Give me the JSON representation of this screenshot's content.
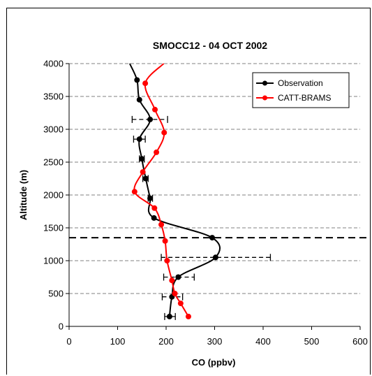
{
  "chart_data": {
    "type": "line",
    "title": "SMOCC12 - 04 OCT 2002",
    "xlabel": "CO (ppbv)",
    "ylabel": "Altitude (m)",
    "xlim": [
      0,
      600
    ],
    "ylim": [
      0,
      4000
    ],
    "xticks": [
      0,
      100,
      200,
      300,
      400,
      500,
      600
    ],
    "yticks": [
      0,
      500,
      1000,
      1500,
      2000,
      2500,
      3000,
      3500,
      4000
    ],
    "grid": "horizontal dashed",
    "legend_position": "top-right",
    "reference_line": {
      "y": 1350,
      "style": "dashed"
    },
    "series": [
      {
        "name": "Observation",
        "color": "#000000",
        "points": [
          {
            "x": 207,
            "y": 150
          },
          {
            "x": 212,
            "y": 450
          },
          {
            "x": 225,
            "y": 750
          },
          {
            "x": 302,
            "y": 1050
          },
          {
            "x": 295,
            "y": 1350
          },
          {
            "x": 175,
            "y": 1650
          },
          {
            "x": 167,
            "y": 1950
          },
          {
            "x": 158,
            "y": 2250
          },
          {
            "x": 150,
            "y": 2550
          },
          {
            "x": 145,
            "y": 2850
          },
          {
            "x": 167,
            "y": 3150
          },
          {
            "x": 145,
            "y": 3450
          },
          {
            "x": 140,
            "y": 3750
          }
        ],
        "curve_extra": [
          {
            "x": 125,
            "y": 4000
          }
        ],
        "xerr": [
          {
            "y": 150,
            "lo": 197,
            "hi": 219
          },
          {
            "y": 450,
            "lo": 192,
            "hi": 234
          },
          {
            "y": 750,
            "lo": 195,
            "hi": 258
          },
          {
            "y": 1050,
            "lo": 190,
            "hi": 415
          },
          {
            "y": 1950,
            "lo": 163,
            "hi": 172
          },
          {
            "y": 2250,
            "lo": 152,
            "hi": 163
          },
          {
            "y": 2550,
            "lo": 145,
            "hi": 155
          },
          {
            "x_center": 145,
            "y": 2850,
            "lo": 133,
            "hi": 157
          },
          {
            "y": 3150,
            "lo": 130,
            "hi": 203
          }
        ]
      },
      {
        "name": "CATT-BRAMS",
        "color": "#ff0000",
        "points": [
          {
            "x": 246,
            "y": 150
          },
          {
            "x": 230,
            "y": 350
          },
          {
            "x": 218,
            "y": 500
          },
          {
            "x": 212,
            "y": 700
          },
          {
            "x": 202,
            "y": 1000
          },
          {
            "x": 198,
            "y": 1300
          },
          {
            "x": 190,
            "y": 1550
          },
          {
            "x": 176,
            "y": 1800
          },
          {
            "x": 135,
            "y": 2050
          },
          {
            "x": 152,
            "y": 2350
          },
          {
            "x": 180,
            "y": 2650
          },
          {
            "x": 196,
            "y": 2950
          },
          {
            "x": 177,
            "y": 3300
          },
          {
            "x": 157,
            "y": 3700
          }
        ],
        "curve_extra": [
          {
            "x": 195,
            "y": 4000
          }
        ]
      }
    ]
  }
}
